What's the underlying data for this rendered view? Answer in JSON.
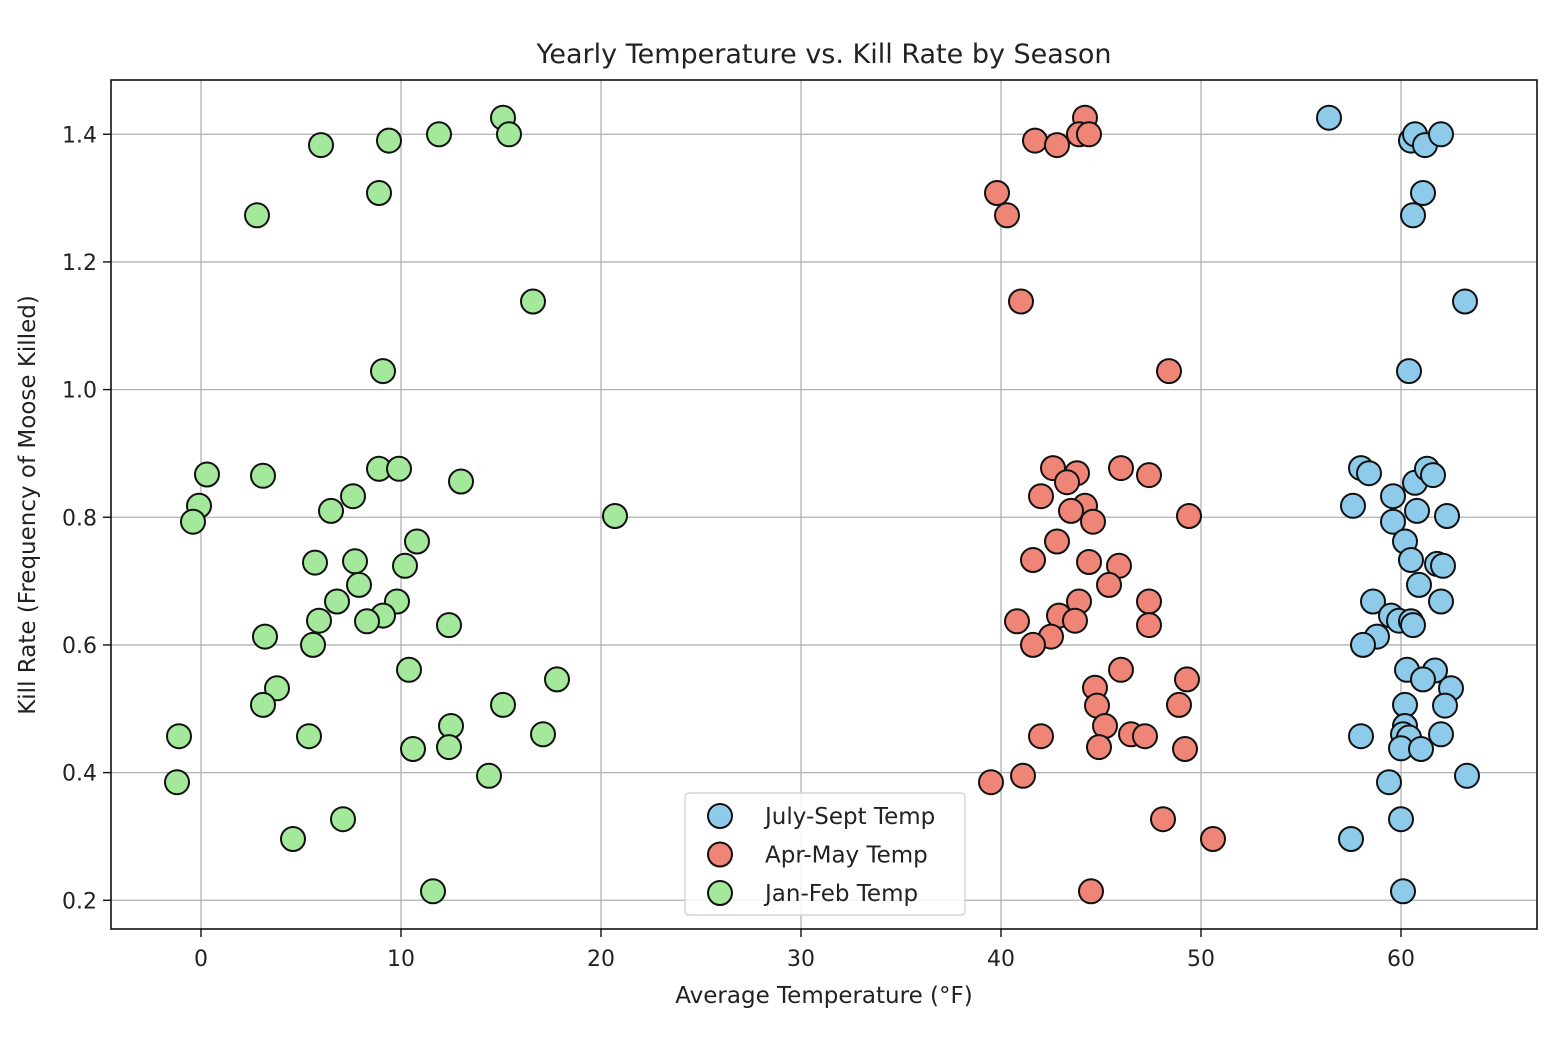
{
  "chart_data": {
    "type": "scatter",
    "title": "Yearly Temperature vs. Kill Rate by Season",
    "xlabel": "Average Temperature (°F)",
    "ylabel": "Kill Rate (Frequency of Moose Killed)",
    "xlim": [
      -4.5,
      66.8
    ],
    "ylim": [
      0.155,
      1.485
    ],
    "xticks": [
      0,
      10,
      20,
      30,
      40,
      50,
      60
    ],
    "yticks": [
      0.2,
      0.4,
      0.6,
      0.8,
      1.0,
      1.2,
      1.4
    ],
    "grid": true,
    "legend_position": "lower center",
    "series": [
      {
        "name": "July-Sept Temp",
        "color": "#8ecbeb",
        "points": [
          [
            56.4,
            1.426
          ],
          [
            60.5,
            1.39
          ],
          [
            60.7,
            1.4
          ],
          [
            61.2,
            1.383
          ],
          [
            62.0,
            1.4
          ],
          [
            61.1,
            1.308
          ],
          [
            60.6,
            1.273
          ],
          [
            63.2,
            1.138
          ],
          [
            60.4,
            1.029
          ],
          [
            58.0,
            0.877
          ],
          [
            58.4,
            0.869
          ],
          [
            60.7,
            0.854
          ],
          [
            61.3,
            0.876
          ],
          [
            61.6,
            0.866
          ],
          [
            57.6,
            0.818
          ],
          [
            59.6,
            0.833
          ],
          [
            60.8,
            0.81
          ],
          [
            62.3,
            0.802
          ],
          [
            59.6,
            0.793
          ],
          [
            60.2,
            0.762
          ],
          [
            60.5,
            0.733
          ],
          [
            61.8,
            0.727
          ],
          [
            62.1,
            0.724
          ],
          [
            60.9,
            0.694
          ],
          [
            58.6,
            0.668
          ],
          [
            62.0,
            0.668
          ],
          [
            59.5,
            0.646
          ],
          [
            59.9,
            0.638
          ],
          [
            60.5,
            0.637
          ],
          [
            60.6,
            0.631
          ],
          [
            58.8,
            0.613
          ],
          [
            58.1,
            0.6
          ],
          [
            60.3,
            0.561
          ],
          [
            61.7,
            0.56
          ],
          [
            61.1,
            0.546
          ],
          [
            62.5,
            0.532
          ],
          [
            60.2,
            0.506
          ],
          [
            62.2,
            0.505
          ],
          [
            60.2,
            0.473
          ],
          [
            60.1,
            0.46
          ],
          [
            60.4,
            0.455
          ],
          [
            58.0,
            0.457
          ],
          [
            62.0,
            0.46
          ],
          [
            60.0,
            0.438
          ],
          [
            61.0,
            0.437
          ],
          [
            63.3,
            0.395
          ],
          [
            59.4,
            0.385
          ],
          [
            60.0,
            0.327
          ],
          [
            57.5,
            0.296
          ],
          [
            60.1,
            0.214
          ]
        ]
      },
      {
        "name": "Apr-May Temp",
        "color": "#ee8577",
        "points": [
          [
            44.2,
            1.426
          ],
          [
            41.7,
            1.39
          ],
          [
            42.8,
            1.383
          ],
          [
            43.9,
            1.4
          ],
          [
            44.4,
            1.4
          ],
          [
            39.8,
            1.308
          ],
          [
            40.3,
            1.273
          ],
          [
            41.0,
            1.138
          ],
          [
            48.4,
            1.029
          ],
          [
            42.6,
            0.877
          ],
          [
            43.8,
            0.869
          ],
          [
            46.0,
            0.877
          ],
          [
            47.4,
            0.866
          ],
          [
            42.0,
            0.833
          ],
          [
            43.3,
            0.855
          ],
          [
            44.2,
            0.818
          ],
          [
            43.5,
            0.81
          ],
          [
            44.6,
            0.793
          ],
          [
            49.4,
            0.802
          ],
          [
            42.8,
            0.762
          ],
          [
            41.6,
            0.733
          ],
          [
            44.4,
            0.73
          ],
          [
            45.9,
            0.724
          ],
          [
            45.4,
            0.694
          ],
          [
            43.9,
            0.668
          ],
          [
            47.4,
            0.668
          ],
          [
            40.8,
            0.637
          ],
          [
            42.9,
            0.646
          ],
          [
            43.7,
            0.638
          ],
          [
            47.4,
            0.631
          ],
          [
            42.5,
            0.613
          ],
          [
            41.6,
            0.6
          ],
          [
            46.0,
            0.561
          ],
          [
            44.7,
            0.533
          ],
          [
            49.3,
            0.546
          ],
          [
            44.8,
            0.505
          ],
          [
            48.9,
            0.506
          ],
          [
            45.2,
            0.473
          ],
          [
            46.5,
            0.46
          ],
          [
            47.2,
            0.457
          ],
          [
            42.0,
            0.457
          ],
          [
            44.9,
            0.44
          ],
          [
            49.2,
            0.437
          ],
          [
            41.1,
            0.395
          ],
          [
            39.5,
            0.385
          ],
          [
            48.1,
            0.327
          ],
          [
            50.6,
            0.296
          ],
          [
            44.5,
            0.214
          ]
        ]
      },
      {
        "name": "Jan-Feb Temp",
        "color": "#a4e89b",
        "points": [
          [
            15.1,
            1.426
          ],
          [
            6.0,
            1.383
          ],
          [
            9.4,
            1.39
          ],
          [
            11.9,
            1.4
          ],
          [
            15.4,
            1.4
          ],
          [
            8.9,
            1.308
          ],
          [
            2.8,
            1.273
          ],
          [
            16.6,
            1.138
          ],
          [
            9.1,
            1.029
          ],
          [
            0.3,
            0.867
          ],
          [
            3.1,
            0.865
          ],
          [
            8.9,
            0.876
          ],
          [
            9.9,
            0.876
          ],
          [
            13.0,
            0.856
          ],
          [
            -0.1,
            0.818
          ],
          [
            -0.4,
            0.793
          ],
          [
            7.6,
            0.833
          ],
          [
            6.5,
            0.81
          ],
          [
            20.7,
            0.802
          ],
          [
            10.8,
            0.762
          ],
          [
            5.7,
            0.729
          ],
          [
            7.7,
            0.731
          ],
          [
            10.2,
            0.724
          ],
          [
            7.9,
            0.694
          ],
          [
            6.8,
            0.668
          ],
          [
            9.8,
            0.668
          ],
          [
            9.1,
            0.646
          ],
          [
            5.9,
            0.638
          ],
          [
            8.3,
            0.637
          ],
          [
            12.4,
            0.631
          ],
          [
            3.2,
            0.613
          ],
          [
            5.6,
            0.6
          ],
          [
            10.4,
            0.561
          ],
          [
            17.8,
            0.546
          ],
          [
            3.8,
            0.532
          ],
          [
            3.1,
            0.506
          ],
          [
            15.1,
            0.506
          ],
          [
            12.5,
            0.473
          ],
          [
            17.1,
            0.46
          ],
          [
            -1.1,
            0.457
          ],
          [
            5.4,
            0.457
          ],
          [
            12.4,
            0.44
          ],
          [
            10.6,
            0.437
          ],
          [
            14.4,
            0.395
          ],
          [
            -1.2,
            0.385
          ],
          [
            7.1,
            0.327
          ],
          [
            4.6,
            0.296
          ],
          [
            11.6,
            0.214
          ]
        ]
      }
    ]
  }
}
